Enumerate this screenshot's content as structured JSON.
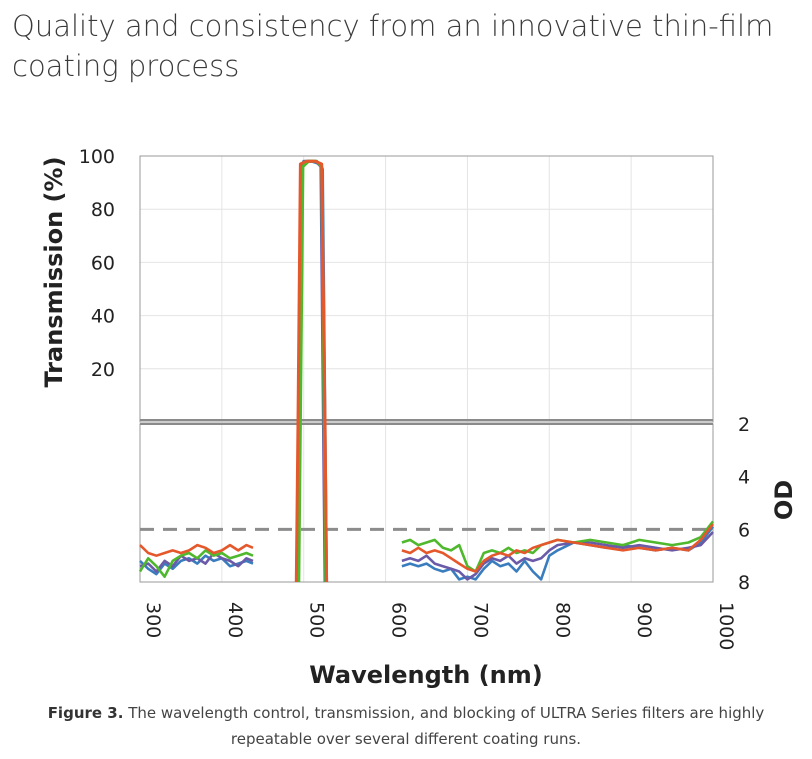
{
  "heading": "Quality and consistency from an innovative thin-film coating process",
  "caption": {
    "bold": "Figure 3.",
    "text": "The wavelength control, transmission, and blocking of ULTRA Series filters are highly repeatable over several different coating runs."
  },
  "chart_data": {
    "type": "line",
    "xlabel": "Wavelength (nm)",
    "x_ticks": [
      "300",
      "400",
      "500",
      "600",
      "700",
      "800",
      "900",
      "1000"
    ],
    "xlim": [
      300,
      1000
    ],
    "panels": {
      "transmission": {
        "ylabel": "Transmission (%)",
        "y_ticks": [
          "20",
          "40",
          "60",
          "80",
          "100"
        ],
        "ylim": [
          0,
          100
        ],
        "grid": true
      },
      "od": {
        "ylabel": "OD",
        "y_ticks": [
          "2",
          "4",
          "6",
          "8"
        ],
        "ylim": [
          2,
          8
        ],
        "reference_line_od": 6,
        "grid": true
      }
    },
    "colors": [
      "#3a7dbf",
      "#1f77b4",
      "#6a5aa8",
      "#4fb82d",
      "#e5582b"
    ],
    "series": [
      {
        "color": "#3a7dbf",
        "transmission": [
          [
            494,
            0
          ],
          [
            497,
            95
          ],
          [
            500,
            98
          ],
          [
            510,
            98
          ],
          [
            520,
            97
          ],
          [
            523,
            95
          ],
          [
            526,
            0
          ]
        ],
        "od": [
          [
            300,
            7.2
          ],
          [
            310,
            7.5
          ],
          [
            320,
            7.7
          ],
          [
            330,
            7.3
          ],
          [
            340,
            7.5
          ],
          [
            350,
            7.2
          ],
          [
            360,
            7.1
          ],
          [
            370,
            7.3
          ],
          [
            380,
            7.0
          ],
          [
            390,
            7.2
          ],
          [
            400,
            7.1
          ],
          [
            410,
            7.4
          ],
          [
            420,
            7.3
          ],
          [
            430,
            7.2
          ],
          [
            438,
            7.3
          ],
          [
            620,
            7.4
          ],
          [
            630,
            7.3
          ],
          [
            640,
            7.4
          ],
          [
            650,
            7.3
          ],
          [
            660,
            7.5
          ],
          [
            670,
            7.6
          ],
          [
            680,
            7.5
          ],
          [
            690,
            7.9
          ],
          [
            700,
            7.8
          ],
          [
            710,
            7.9
          ],
          [
            720,
            7.5
          ],
          [
            730,
            7.2
          ],
          [
            740,
            7.4
          ],
          [
            750,
            7.3
          ],
          [
            760,
            7.6
          ],
          [
            770,
            7.2
          ],
          [
            780,
            7.6
          ],
          [
            790,
            7.9
          ],
          [
            800,
            7.0
          ],
          [
            810,
            6.8
          ],
          [
            830,
            6.5
          ],
          [
            850,
            6.6
          ],
          [
            870,
            6.7
          ],
          [
            890,
            6.6
          ],
          [
            910,
            6.7
          ],
          [
            930,
            6.8
          ],
          [
            950,
            6.7
          ],
          [
            970,
            6.8
          ],
          [
            985,
            6.5
          ],
          [
            1000,
            5.9
          ]
        ]
      },
      {
        "color": "#6a5aa8",
        "transmission": [
          [
            495,
            0
          ],
          [
            498,
            96
          ],
          [
            505,
            98
          ],
          [
            515,
            98
          ],
          [
            521,
            96
          ],
          [
            524,
            0
          ]
        ],
        "od": [
          [
            300,
            7.4
          ],
          [
            310,
            7.3
          ],
          [
            320,
            7.6
          ],
          [
            330,
            7.2
          ],
          [
            340,
            7.4
          ],
          [
            350,
            7.0
          ],
          [
            360,
            7.2
          ],
          [
            370,
            7.1
          ],
          [
            380,
            7.3
          ],
          [
            390,
            6.9
          ],
          [
            400,
            7.1
          ],
          [
            410,
            7.2
          ],
          [
            420,
            7.4
          ],
          [
            430,
            7.1
          ],
          [
            438,
            7.2
          ],
          [
            620,
            7.2
          ],
          [
            630,
            7.1
          ],
          [
            640,
            7.2
          ],
          [
            650,
            7.0
          ],
          [
            660,
            7.3
          ],
          [
            670,
            7.4
          ],
          [
            680,
            7.5
          ],
          [
            690,
            7.6
          ],
          [
            700,
            7.9
          ],
          [
            710,
            7.7
          ],
          [
            720,
            7.3
          ],
          [
            730,
            7.1
          ],
          [
            740,
            7.2
          ],
          [
            750,
            7.0
          ],
          [
            760,
            7.3
          ],
          [
            770,
            7.1
          ],
          [
            780,
            7.2
          ],
          [
            790,
            7.1
          ],
          [
            800,
            6.8
          ],
          [
            810,
            6.6
          ],
          [
            830,
            6.5
          ],
          [
            850,
            6.5
          ],
          [
            870,
            6.6
          ],
          [
            890,
            6.7
          ],
          [
            910,
            6.6
          ],
          [
            930,
            6.7
          ],
          [
            950,
            6.8
          ],
          [
            970,
            6.7
          ],
          [
            985,
            6.6
          ],
          [
            1000,
            6.1
          ]
        ]
      },
      {
        "color": "#4fb82d",
        "transmission": [
          [
            496,
            0
          ],
          [
            499,
            96
          ],
          [
            506,
            98
          ],
          [
            516,
            98
          ],
          [
            522,
            96
          ],
          [
            525,
            0
          ]
        ],
        "od": [
          [
            300,
            7.6
          ],
          [
            310,
            7.1
          ],
          [
            320,
            7.4
          ],
          [
            330,
            7.8
          ],
          [
            340,
            7.2
          ],
          [
            350,
            7.0
          ],
          [
            360,
            6.9
          ],
          [
            370,
            7.1
          ],
          [
            380,
            6.8
          ],
          [
            390,
            7.0
          ],
          [
            400,
            6.9
          ],
          [
            410,
            7.1
          ],
          [
            420,
            7.0
          ],
          [
            430,
            6.9
          ],
          [
            438,
            7.0
          ],
          [
            620,
            6.5
          ],
          [
            630,
            6.4
          ],
          [
            640,
            6.6
          ],
          [
            650,
            6.5
          ],
          [
            660,
            6.4
          ],
          [
            670,
            6.7
          ],
          [
            680,
            6.8
          ],
          [
            690,
            6.6
          ],
          [
            700,
            7.4
          ],
          [
            710,
            7.6
          ],
          [
            720,
            6.9
          ],
          [
            730,
            6.8
          ],
          [
            740,
            6.9
          ],
          [
            750,
            6.7
          ],
          [
            760,
            6.9
          ],
          [
            770,
            6.8
          ],
          [
            780,
            6.9
          ],
          [
            790,
            6.6
          ],
          [
            800,
            6.5
          ],
          [
            810,
            6.4
          ],
          [
            830,
            6.5
          ],
          [
            850,
            6.4
          ],
          [
            870,
            6.5
          ],
          [
            890,
            6.6
          ],
          [
            910,
            6.4
          ],
          [
            930,
            6.5
          ],
          [
            950,
            6.6
          ],
          [
            970,
            6.5
          ],
          [
            985,
            6.3
          ],
          [
            1000,
            5.7
          ]
        ]
      },
      {
        "color": "#e5582b",
        "transmission": [
          [
            493,
            0
          ],
          [
            496,
            97
          ],
          [
            503,
            98
          ],
          [
            514,
            98
          ],
          [
            522,
            97
          ],
          [
            526,
            0
          ]
        ],
        "od": [
          [
            300,
            6.6
          ],
          [
            310,
            6.9
          ],
          [
            320,
            7.0
          ],
          [
            330,
            6.9
          ],
          [
            340,
            6.8
          ],
          [
            350,
            6.9
          ],
          [
            360,
            6.8
          ],
          [
            370,
            6.6
          ],
          [
            380,
            6.7
          ],
          [
            390,
            6.9
          ],
          [
            400,
            6.8
          ],
          [
            410,
            6.6
          ],
          [
            420,
            6.8
          ],
          [
            430,
            6.6
          ],
          [
            438,
            6.7
          ],
          [
            620,
            6.8
          ],
          [
            630,
            6.9
          ],
          [
            640,
            6.7
          ],
          [
            650,
            6.9
          ],
          [
            660,
            6.8
          ],
          [
            670,
            6.9
          ],
          [
            680,
            7.1
          ],
          [
            690,
            7.3
          ],
          [
            700,
            7.5
          ],
          [
            710,
            7.6
          ],
          [
            720,
            7.2
          ],
          [
            730,
            7.0
          ],
          [
            740,
            6.9
          ],
          [
            750,
            7.0
          ],
          [
            760,
            6.8
          ],
          [
            770,
            6.9
          ],
          [
            780,
            6.7
          ],
          [
            790,
            6.6
          ],
          [
            800,
            6.5
          ],
          [
            810,
            6.4
          ],
          [
            830,
            6.5
          ],
          [
            850,
            6.6
          ],
          [
            870,
            6.7
          ],
          [
            890,
            6.8
          ],
          [
            910,
            6.7
          ],
          [
            930,
            6.8
          ],
          [
            950,
            6.7
          ],
          [
            970,
            6.8
          ],
          [
            985,
            6.4
          ],
          [
            1000,
            5.8
          ]
        ]
      }
    ]
  }
}
